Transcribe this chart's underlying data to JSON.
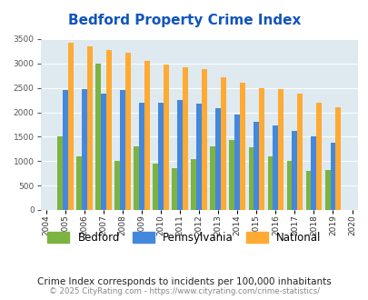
{
  "title": "Bedford Property Crime Index",
  "years": [
    2004,
    2005,
    2006,
    2007,
    2008,
    2009,
    2010,
    2011,
    2012,
    2013,
    2014,
    2015,
    2016,
    2017,
    2018,
    2019,
    2020
  ],
  "bedford": [
    null,
    1500,
    1100,
    3000,
    1000,
    1300,
    950,
    850,
    1050,
    1300,
    1425,
    1275,
    1100,
    1000,
    800,
    825,
    null
  ],
  "pennsylvania": [
    null,
    2450,
    2475,
    2375,
    2450,
    2200,
    2200,
    2250,
    2175,
    2075,
    1950,
    1800,
    1725,
    1625,
    1500,
    1375,
    null
  ],
  "national": [
    null,
    3425,
    3350,
    3275,
    3225,
    3050,
    2975,
    2925,
    2875,
    2725,
    2600,
    2500,
    2475,
    2375,
    2200,
    2100,
    null
  ],
  "bedford_color": "#7cb342",
  "pennsylvania_color": "#4488dd",
  "national_color": "#ffaa33",
  "bg_color": "#deeaf0",
  "ylim": [
    0,
    3500
  ],
  "yticks": [
    0,
    500,
    1000,
    1500,
    2000,
    2500,
    3000,
    3500
  ],
  "title_color": "#1155bb",
  "subtitle": "Crime Index corresponds to incidents per 100,000 inhabitants",
  "footer": "© 2025 CityRating.com - https://www.cityrating.com/crime-statistics/",
  "legend_labels": [
    "Bedford",
    "Pennsylvania",
    "National"
  ]
}
